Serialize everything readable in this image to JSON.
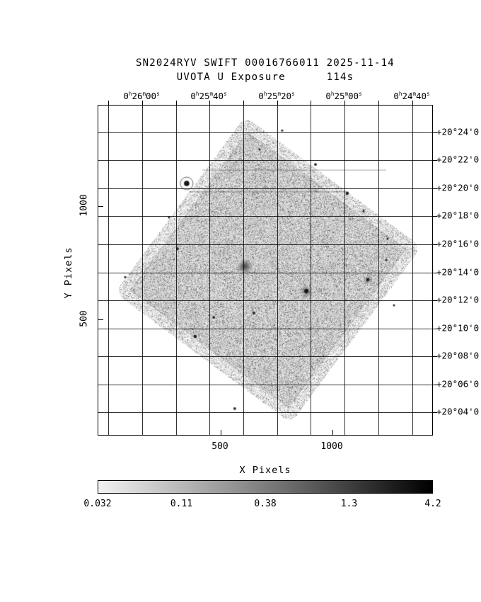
{
  "title": {
    "line1": "SN2024RYV SWIFT 00016766011 2025-11-14",
    "line2": "UVOTA U Exposure",
    "exposure": "114s"
  },
  "axes": {
    "x_label": "X Pixels",
    "y_label": "Y Pixels",
    "x_tick_labels": [
      "500",
      "1000"
    ],
    "y_tick_labels": [
      "500",
      "1000"
    ],
    "ra_tick_labels": [
      "0h26m00s",
      "0h25m40s",
      "0h25m20s",
      "0h25m00s",
      "0h24m40s"
    ],
    "dec_tick_labels": [
      "+20°24'0",
      "+20°22'0",
      "+20°20'0",
      "+20°18'0",
      "+20°16'0",
      "+20°14'0",
      "+20°12'0",
      "+20°10'0",
      "+20°08'0",
      "+20°06'0",
      "+20°04'0"
    ]
  },
  "colorbar": {
    "tick_labels": [
      "0.032",
      "0.11",
      "0.38",
      "1.3",
      "4.2"
    ],
    "scale": "log",
    "min_hex": "#f2f2f2",
    "max_hex": "#000000"
  },
  "chart_data": {
    "type": "heatmap",
    "title": "SN2024RYV SWIFT 00016766011 2025-11-14",
    "subtitle": "UVOTA U Exposure 114s",
    "xlabel": "X Pixels",
    "ylabel": "Y Pixels",
    "xlim": [
      -47,
      1452
    ],
    "ylim": [
      -16,
      1444
    ],
    "x_ticks": [
      500,
      1000
    ],
    "y_ticks": [
      500,
      1000
    ],
    "ra_ticks": [
      "0h26m00s",
      "0h25m40s",
      "0h25m20s",
      "0h25m00s",
      "0h24m40s"
    ],
    "dec_ticks": [
      "+20°24'0",
      "+20°22'0",
      "+20°20'0",
      "+20°18'0",
      "+20°16'0",
      "+20°14'0",
      "+20°12'0",
      "+20°10'0",
      "+20°08'0",
      "+20°06'0",
      "+20°04'0"
    ],
    "grid": true,
    "colorbar_ticks": [
      0.032,
      0.11,
      0.38,
      1.3,
      4.2
    ],
    "colorbar_scale": "log",
    "field": {
      "shape": "rotated-square",
      "rotation_deg": 36.5,
      "center": [
        712,
        719
      ],
      "side": 980,
      "corner_radius": 45,
      "background_level_counts": 0.08
    },
    "artifact_rows": [
      {
        "y": 1159,
        "x1": 418,
        "x2": 1240
      },
      {
        "y": 1063,
        "x1": 361,
        "x2": 1073
      }
    ],
    "sources": [
      {
        "x": 348,
        "y": 1100,
        "r": 9,
        "kind": "bright-halo"
      },
      {
        "x": 608,
        "y": 734,
        "r": 11,
        "kind": "fuzzy"
      },
      {
        "x": 883,
        "y": 625,
        "r": 5,
        "kind": "point-halo"
      },
      {
        "x": 1158,
        "y": 675,
        "r": 3.5,
        "kind": "point-halo"
      },
      {
        "x": 924,
        "y": 1184,
        "r": 2.5,
        "kind": "point"
      },
      {
        "x": 1066,
        "y": 1056,
        "r": 3,
        "kind": "point"
      },
      {
        "x": 1139,
        "y": 978,
        "r": 2,
        "kind": "point"
      },
      {
        "x": 1246,
        "y": 856,
        "r": 2,
        "kind": "point"
      },
      {
        "x": 307,
        "y": 812,
        "r": 2.5,
        "kind": "point"
      },
      {
        "x": 469,
        "y": 509,
        "r": 2.5,
        "kind": "point"
      },
      {
        "x": 649,
        "y": 528,
        "r": 2.5,
        "kind": "point"
      },
      {
        "x": 386,
        "y": 425,
        "r": 3,
        "kind": "point"
      },
      {
        "x": 563,
        "y": 106,
        "r": 2.5,
        "kind": "point"
      },
      {
        "x": 674,
        "y": 1250,
        "r": 2,
        "kind": "point"
      },
      {
        "x": 775,
        "y": 1334,
        "r": 2,
        "kind": "point"
      },
      {
        "x": 1275,
        "y": 562,
        "r": 2,
        "kind": "point"
      },
      {
        "x": 269,
        "y": 950,
        "r": 2,
        "kind": "point"
      },
      {
        "x": 1240,
        "y": 762,
        "r": 2,
        "kind": "point"
      },
      {
        "x": 73,
        "y": 687,
        "r": 2,
        "kind": "point"
      }
    ]
  }
}
